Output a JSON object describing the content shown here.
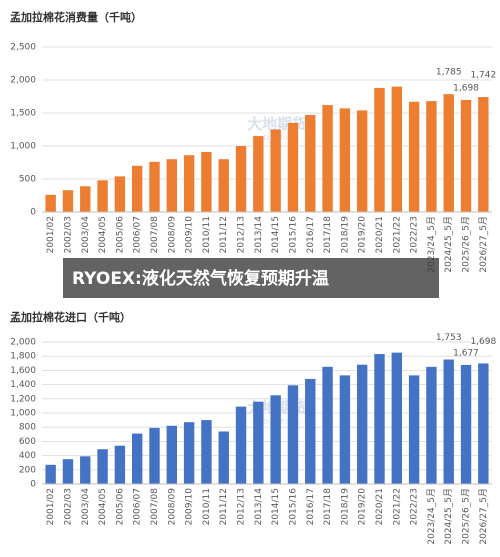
{
  "chart_data": [
    {
      "type": "bar",
      "title": "孟加拉棉花消费量（千吨）",
      "categories": [
        "2001/02",
        "2002/03",
        "2003/04",
        "2004/05",
        "2005/06",
        "2006/07",
        "2007/08",
        "2008/09",
        "2009/10",
        "2010/11",
        "2011/12",
        "2012/13",
        "2013/14",
        "2014/15",
        "2015/16",
        "2016/17",
        "2017/18",
        "2018/19",
        "2019/20",
        "2020/21",
        "2021/22",
        "2022/23",
        "2023/24_5月",
        "2024/25_5月",
        "2025/26_5月",
        "2026/27_5月"
      ],
      "values": [
        260,
        330,
        390,
        480,
        540,
        700,
        760,
        800,
        860,
        910,
        800,
        1000,
        1150,
        1250,
        1350,
        1470,
        1620,
        1570,
        1540,
        1880,
        1900,
        1670,
        1680,
        1785,
        1698,
        1742
      ],
      "value_labels": [
        null,
        null,
        null,
        null,
        null,
        null,
        null,
        null,
        null,
        null,
        null,
        null,
        null,
        null,
        null,
        null,
        null,
        null,
        null,
        null,
        null,
        null,
        null,
        "1,785",
        "1,698",
        "1,742"
      ],
      "color": "#ed7d31",
      "ylim": [
        0,
        2500
      ],
      "yticks": [
        0,
        500,
        {
          "value": 1000,
          "label": "1,000"
        },
        {
          "value": 1500,
          "label": "1,500"
        },
        {
          "value": 2000,
          "label": "2,000"
        },
        {
          "value": 2500,
          "label": "2,500"
        }
      ],
      "grid": true
    },
    {
      "type": "bar",
      "title": "孟加拉棉花进口（千吨）",
      "categories": [
        "2001/02",
        "2002/03",
        "2003/04",
        "2004/05",
        "2005/06",
        "2006/07",
        "2007/08",
        "2008/09",
        "2009/10",
        "2010/11",
        "2011/12",
        "2012/13",
        "2013/14",
        "2014/15",
        "2015/16",
        "2016/17",
        "2017/18",
        "2018/19",
        "2019/20",
        "2020/21",
        "2021/22",
        "2022/23",
        "2023/24_5月",
        "2024/25_5月",
        "2025/26_5月",
        "2026/27_5月"
      ],
      "values": [
        270,
        350,
        390,
        490,
        540,
        710,
        790,
        820,
        870,
        900,
        740,
        1090,
        1160,
        1250,
        1390,
        1480,
        1650,
        1530,
        1680,
        1830,
        1850,
        1530,
        1650,
        1753,
        1677,
        1698
      ],
      "value_labels": [
        null,
        null,
        null,
        null,
        null,
        null,
        null,
        null,
        null,
        null,
        null,
        null,
        null,
        null,
        null,
        null,
        null,
        null,
        null,
        null,
        null,
        null,
        null,
        "1,753",
        "1,677",
        "1,698"
      ],
      "color": "#4472c4",
      "ylim": [
        0,
        2000
      ],
      "yticks": [
        0,
        200,
        400,
        600,
        800,
        {
          "value": 1000,
          "label": "1,000"
        },
        {
          "value": 1200,
          "label": "1,200"
        },
        {
          "value": 1400,
          "label": "1,400"
        },
        {
          "value": 1600,
          "label": "1,600"
        },
        {
          "value": 1800,
          "label": "1,800"
        },
        {
          "value": 2000,
          "label": "2,000"
        }
      ],
      "grid": true
    }
  ],
  "watermark": [
    "大地期货",
    "DADI FUTURES"
  ],
  "banner": "RYOEX:液化天然气恢复预期升温"
}
